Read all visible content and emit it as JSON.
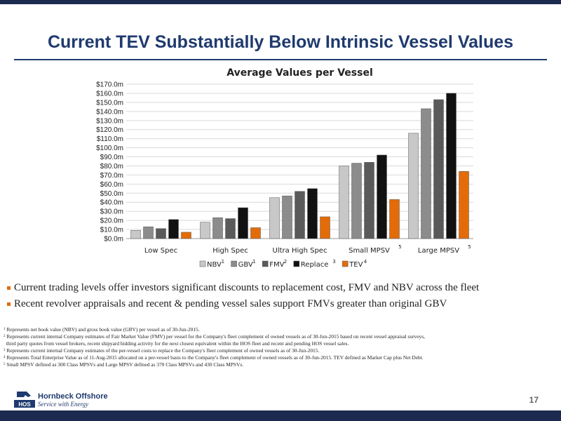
{
  "slide": {
    "title": "Current TEV Substantially Below Intrinsic Vessel Values",
    "page_number": "17",
    "logo_name": "Hornbeck Offshore",
    "logo_tagline": "Service with Energy",
    "logo_mark_text": "HOS"
  },
  "bullets": [
    "Current trading levels offer investors significant discounts to replacement cost, FMV and NBV across the fleet",
    "Recent revolver appraisals and recent & pending vessel sales support FMVs greater than original GBV"
  ],
  "footnotes": [
    {
      "num": "1",
      "text": "Represents net book value (NBV) and gross book value (GBV) per vessel as of 30-Jun-2015."
    },
    {
      "num": "2",
      "text": "Represents current internal Company estimates of Fair Market Value (FMV) per vessel for the Company's fleet complement of owned vessels as of 30-Jun-2015 based on recent vessel appraisal surveys,"
    },
    {
      "num": "",
      "text": "third party quotes from vessel brokers, recent shipyard bidding activity for the next closest equivalent within the HOS fleet and recent and pending HOS vessel sales."
    },
    {
      "num": "3",
      "text": "Represents current internal Company estimates of the per-vessel costs to replace the Company's fleet complement of owned vessels as of 30-Jun-2015."
    },
    {
      "num": "4",
      "text": "Represents Total Enterprise Value as of 11-Aug-2015 allocated on a per-vessel basis to the Company's fleet complement of owned vessels as of 30-Jun-2015. TEV defined as Market Cap plus Net Debt."
    },
    {
      "num": "5",
      "text": "Small MPSV defined as 300 Class MPSVs and Large MPSV defined as 370 Class MPSVs and 430 Class MPSVs."
    }
  ],
  "chart_data": {
    "type": "bar",
    "title": "Average Values per Vessel",
    "categories": [
      "Low Spec",
      "High Spec",
      "Ultra High Spec",
      "Small MPSV",
      "Large MPSV"
    ],
    "category_superscripts": [
      "",
      "",
      "",
      "5",
      "5"
    ],
    "ylim": [
      0,
      170
    ],
    "ytick_step": 10,
    "ytick_labels": [
      "$0.0m",
      "$10.0m",
      "$20.0m",
      "$30.0m",
      "$40.0m",
      "$50.0m",
      "$60.0m",
      "$70.0m",
      "$80.0m",
      "$90.0m",
      "$100.0m",
      "$110.0m",
      "$120.0m",
      "$130.0m",
      "$140.0m",
      "$150.0m",
      "$160.0m",
      "$170.0m"
    ],
    "grid": true,
    "legend_position": "bottom",
    "series": [
      {
        "name": "NBV",
        "superscript": "1",
        "color": "#c8c8c8",
        "values": [
          9,
          18,
          45,
          80,
          116
        ]
      },
      {
        "name": "GBV",
        "superscript": "1",
        "color": "#8c8c8c",
        "values": [
          13,
          23,
          47,
          83,
          143
        ]
      },
      {
        "name": "FMV",
        "superscript": "2",
        "color": "#5a5a5a",
        "values": [
          11,
          22,
          52,
          84,
          153
        ]
      },
      {
        "name": "Replace",
        "superscript": "3",
        "color": "#111111",
        "values": [
          21,
          34,
          55,
          92,
          160
        ]
      },
      {
        "name": "TEV",
        "superscript": "4",
        "color": "#e36c09",
        "values": [
          7,
          12,
          24,
          43,
          74
        ]
      }
    ]
  }
}
